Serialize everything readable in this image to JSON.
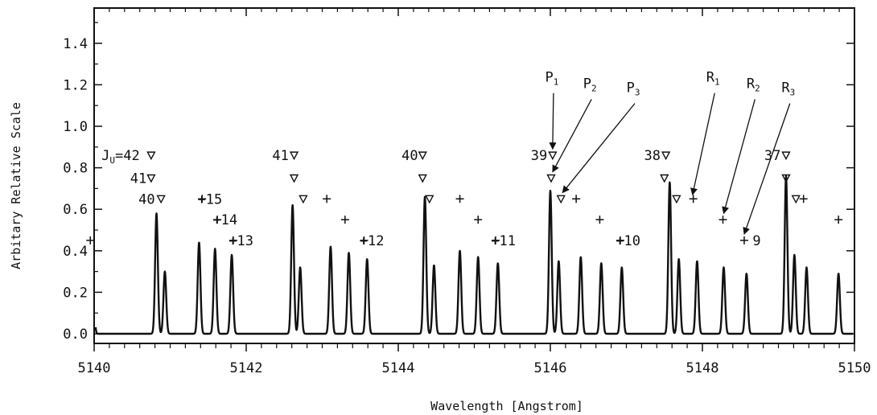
{
  "chart_data": {
    "type": "line",
    "title": "",
    "xlabel": "Wavelength [Angstrom]",
    "ylabel": "Arbitary Relative Scale",
    "xlim": [
      5140,
      5150
    ],
    "ylim": [
      0.0,
      1.55
    ],
    "x_ticks": [
      5140,
      5142,
      5144,
      5146,
      5148,
      5150
    ],
    "y_ticks": [
      "0.0",
      "0.2",
      "0.4",
      "0.6",
      "0.8",
      "1.0",
      "1.2",
      "1.4"
    ],
    "grid": false,
    "line_width_angstrom": 0.018,
    "peaks": [
      {
        "x": 5139.98,
        "y": 0.37
      },
      {
        "x": 5140.82,
        "y": 0.58
      },
      {
        "x": 5140.93,
        "y": 0.3
      },
      {
        "x": 5141.38,
        "y": 0.44
      },
      {
        "x": 5141.59,
        "y": 0.41
      },
      {
        "x": 5141.81,
        "y": 0.38
      },
      {
        "x": 5142.61,
        "y": 0.62
      },
      {
        "x": 5142.71,
        "y": 0.32
      },
      {
        "x": 5143.11,
        "y": 0.42
      },
      {
        "x": 5143.35,
        "y": 0.39
      },
      {
        "x": 5143.59,
        "y": 0.36
      },
      {
        "x": 5144.35,
        "y": 0.66
      },
      {
        "x": 5144.47,
        "y": 0.33
      },
      {
        "x": 5144.81,
        "y": 0.4
      },
      {
        "x": 5145.05,
        "y": 0.37
      },
      {
        "x": 5145.31,
        "y": 0.34
      },
      {
        "x": 5146.0,
        "y": 0.69
      },
      {
        "x": 5146.11,
        "y": 0.35
      },
      {
        "x": 5146.4,
        "y": 0.37
      },
      {
        "x": 5146.67,
        "y": 0.34
      },
      {
        "x": 5146.94,
        "y": 0.32
      },
      {
        "x": 5147.57,
        "y": 0.73
      },
      {
        "x": 5147.69,
        "y": 0.36
      },
      {
        "x": 5147.93,
        "y": 0.35
      },
      {
        "x": 5148.28,
        "y": 0.32
      },
      {
        "x": 5148.58,
        "y": 0.29
      },
      {
        "x": 5149.1,
        "y": 0.76
      },
      {
        "x": 5149.21,
        "y": 0.38
      },
      {
        "x": 5149.37,
        "y": 0.32
      },
      {
        "x": 5149.79,
        "y": 0.29
      }
    ],
    "triangle_markers": [
      {
        "x": 5140.75,
        "y": 0.86
      },
      {
        "x": 5140.75,
        "y": 0.75
      },
      {
        "x": 5140.88,
        "y": 0.65
      },
      {
        "x": 5142.63,
        "y": 0.86
      },
      {
        "x": 5142.63,
        "y": 0.75
      },
      {
        "x": 5142.75,
        "y": 0.65
      },
      {
        "x": 5144.32,
        "y": 0.86
      },
      {
        "x": 5144.32,
        "y": 0.75
      },
      {
        "x": 5144.41,
        "y": 0.65
      },
      {
        "x": 5146.03,
        "y": 0.86
      },
      {
        "x": 5146.01,
        "y": 0.75
      },
      {
        "x": 5146.14,
        "y": 0.65
      },
      {
        "x": 5147.52,
        "y": 0.86
      },
      {
        "x": 5147.5,
        "y": 0.75
      },
      {
        "x": 5147.66,
        "y": 0.65
      },
      {
        "x": 5149.1,
        "y": 0.86
      },
      {
        "x": 5149.1,
        "y": 0.75
      },
      {
        "x": 5149.23,
        "y": 0.65
      }
    ],
    "plus_markers": [
      {
        "x": 5139.95,
        "y": 0.45
      },
      {
        "x": 5141.42,
        "y": 0.65
      },
      {
        "x": 5141.62,
        "y": 0.55
      },
      {
        "x": 5141.83,
        "y": 0.45
      },
      {
        "x": 5143.06,
        "y": 0.65
      },
      {
        "x": 5143.3,
        "y": 0.55
      },
      {
        "x": 5143.55,
        "y": 0.45
      },
      {
        "x": 5144.81,
        "y": 0.65
      },
      {
        "x": 5145.05,
        "y": 0.55
      },
      {
        "x": 5145.28,
        "y": 0.45
      },
      {
        "x": 5146.34,
        "y": 0.65
      },
      {
        "x": 5146.65,
        "y": 0.55
      },
      {
        "x": 5146.92,
        "y": 0.45
      },
      {
        "x": 5147.88,
        "y": 0.65
      },
      {
        "x": 5148.27,
        "y": 0.55
      },
      {
        "x": 5148.55,
        "y": 0.45
      },
      {
        "x": 5149.33,
        "y": 0.65
      },
      {
        "x": 5149.79,
        "y": 0.55
      }
    ],
    "annotations": [
      {
        "text": "J",
        "sub": "U",
        "after": "=42",
        "x": 5140.6,
        "y": 0.86,
        "anchor": "end"
      },
      {
        "text": "41",
        "x": 5140.69,
        "y": 0.75,
        "anchor": "end"
      },
      {
        "text": "40",
        "x": 5140.8,
        "y": 0.65,
        "anchor": "end"
      },
      {
        "text": "+15",
        "x": 5141.36,
        "y": 0.65,
        "anchor": "start"
      },
      {
        "text": "+14",
        "x": 5141.56,
        "y": 0.55,
        "anchor": "start"
      },
      {
        "text": "+13",
        "x": 5141.77,
        "y": 0.45,
        "anchor": "start"
      },
      {
        "text": "41",
        "x": 5142.56,
        "y": 0.86,
        "anchor": "end"
      },
      {
        "text": "+12",
        "x": 5143.49,
        "y": 0.45,
        "anchor": "start"
      },
      {
        "text": "40",
        "x": 5144.26,
        "y": 0.86,
        "anchor": "end"
      },
      {
        "text": "+11",
        "x": 5145.22,
        "y": 0.45,
        "anchor": "start"
      },
      {
        "text": "39",
        "x": 5145.96,
        "y": 0.86,
        "anchor": "end"
      },
      {
        "text": "+10",
        "x": 5146.86,
        "y": 0.45,
        "anchor": "start"
      },
      {
        "text": "38",
        "x": 5147.45,
        "y": 0.86,
        "anchor": "end"
      },
      {
        "text": "9",
        "x": 5148.66,
        "y": 0.45,
        "anchor": "start"
      },
      {
        "text": "37",
        "x": 5149.03,
        "y": 0.86,
        "anchor": "end"
      }
    ],
    "arrow_labels": [
      {
        "text": "P",
        "sub": "1",
        "x": 5146.02,
        "y": 1.16,
        "tx": 5146.03,
        "ty": 0.89
      },
      {
        "text": "P",
        "sub": "2",
        "x": 5146.52,
        "y": 1.13,
        "tx": 5146.03,
        "ty": 0.78
      },
      {
        "text": "P",
        "sub": "3",
        "x": 5147.09,
        "y": 1.11,
        "tx": 5146.16,
        "ty": 0.68
      },
      {
        "text": "R",
        "sub": "1",
        "x": 5148.14,
        "y": 1.16,
        "tx": 5147.87,
        "ty": 0.67
      },
      {
        "text": "R",
        "sub": "2",
        "x": 5148.67,
        "y": 1.13,
        "tx": 5148.28,
        "ty": 0.58
      },
      {
        "text": "R",
        "sub": "3",
        "x": 5149.13,
        "y": 1.11,
        "tx": 5148.55,
        "ty": 0.48
      }
    ]
  }
}
